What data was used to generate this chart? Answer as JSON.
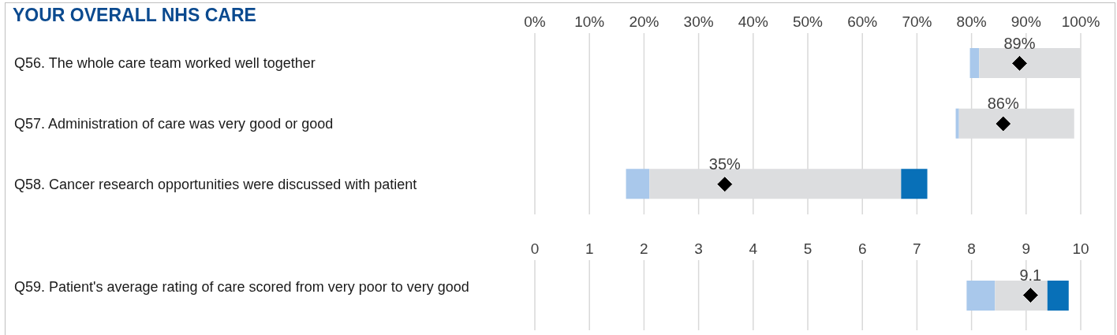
{
  "chart_data": [
    {
      "type": "bar",
      "orientation": "horizontal",
      "title": "YOUR OVERALL NHS CARE",
      "categories": [
        "Q56. The whole care team worked well together",
        "Q57. Administration of care was very good or good",
        "Q58. Cancer research opportunities were discussed with patient"
      ],
      "series": [
        {
          "color": "#a9c8eb",
          "base": [
            79.7,
            77.1,
            16.7
          ],
          "values": [
            1.7,
            0.6,
            4.3
          ]
        },
        {
          "color": "#dcdddf",
          "base": [
            81.4,
            77.7,
            21.0
          ],
          "values": [
            18.6,
            21.1,
            46.1
          ]
        },
        {
          "color": "#0870b8",
          "base": [
            null,
            null,
            67.1
          ],
          "values": [
            null,
            null,
            4.8
          ]
        },
        {
          "type": "scatter",
          "color": "#000000",
          "values": [
            88.8,
            85.8,
            34.8
          ],
          "value_labels": [
            "89%",
            "86%",
            "35%"
          ]
        }
      ],
      "marker": "diamond",
      "xlim": [
        0,
        100
      ],
      "xticks": [
        {
          "value": 0,
          "label": "0%"
        },
        {
          "value": 10,
          "label": "10%"
        },
        {
          "value": 20,
          "label": "20%"
        },
        {
          "value": 30,
          "label": "30%"
        },
        {
          "value": 40,
          "label": "40%"
        },
        {
          "value": 50,
          "label": "50%"
        },
        {
          "value": 60,
          "label": "60%"
        },
        {
          "value": 70,
          "label": "70%"
        },
        {
          "value": 80,
          "label": "80%"
        },
        {
          "value": 90,
          "label": "90%"
        },
        {
          "value": 100,
          "label": "100%"
        }
      ],
      "grid": "x"
    },
    {
      "type": "bar",
      "orientation": "horizontal",
      "categories": [
        "Q59. Patient's average rating of care scored from very poor to very good"
      ],
      "series": [
        {
          "color": "#a9c8eb",
          "base": [
            7.91
          ],
          "values": [
            0.52
          ]
        },
        {
          "color": "#dcdddf",
          "base": [
            8.43
          ],
          "values": [
            0.96
          ]
        },
        {
          "color": "#0870b8",
          "base": [
            9.39
          ],
          "values": [
            0.39
          ]
        },
        {
          "type": "scatter",
          "color": "#000000",
          "values": [
            9.08
          ],
          "value_labels": [
            "9.1"
          ]
        }
      ],
      "marker": "diamond",
      "xlim": [
        0,
        10
      ],
      "xticks": [
        0,
        1,
        2,
        3,
        4,
        5,
        6,
        7,
        8,
        9,
        10
      ],
      "grid": "x"
    }
  ]
}
